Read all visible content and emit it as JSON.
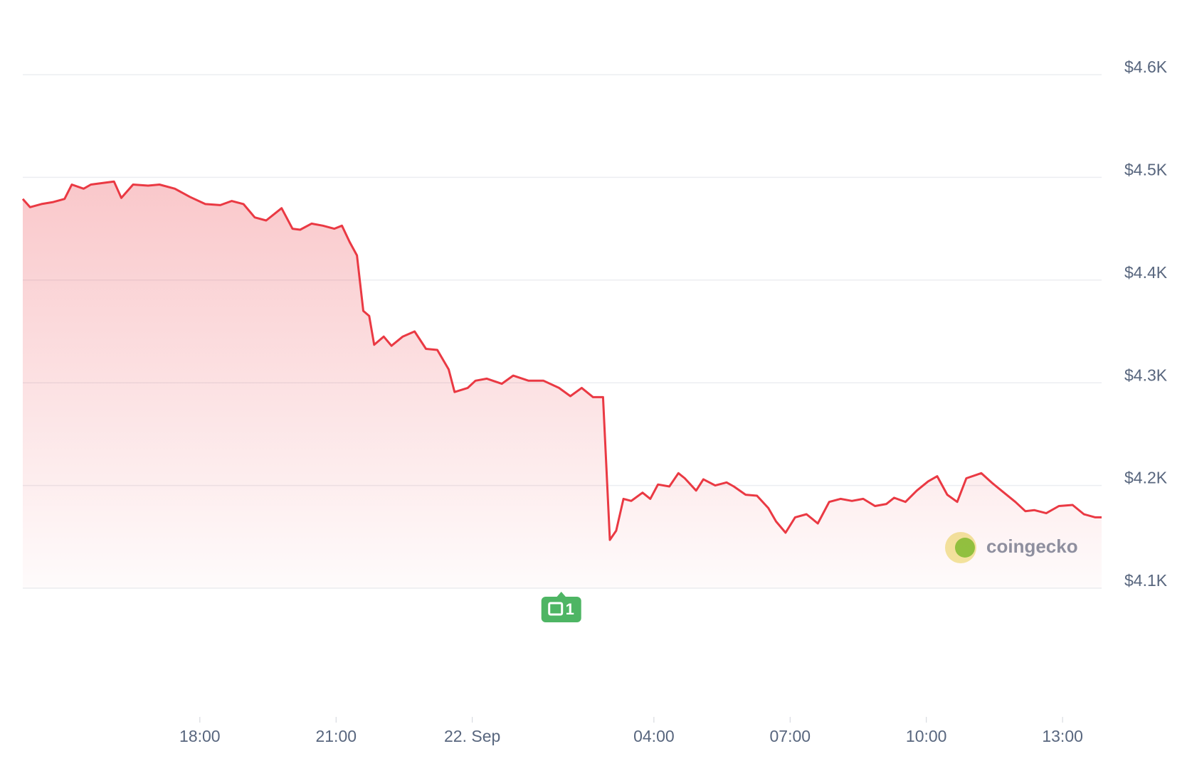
{
  "chart_data": {
    "type": "line",
    "x": [
      14.1,
      14.26,
      14.51,
      14.77,
      15.02,
      15.18,
      15.44,
      15.6,
      15.94,
      16.11,
      16.27,
      16.53,
      16.86,
      17.11,
      17.45,
      17.78,
      18.12,
      18.45,
      18.7,
      18.96,
      19.21,
      19.46,
      19.8,
      20.04,
      20.21,
      20.46,
      20.71,
      20.96,
      21.13,
      21.3,
      21.46,
      21.6,
      21.73,
      21.84,
      22.05,
      22.22,
      22.47,
      22.73,
      22.98,
      23.23,
      23.48,
      23.61,
      23.9,
      24.07,
      24.32,
      24.65,
      24.9,
      25.24,
      25.57,
      25.91,
      26.16,
      26.41,
      26.66,
      26.88,
      27.03,
      27.17,
      27.33,
      27.5,
      27.75,
      27.92,
      28.09,
      28.34,
      28.54,
      28.68,
      28.93,
      29.09,
      29.35,
      29.6,
      29.76,
      30.02,
      30.27,
      30.52,
      30.69,
      30.9,
      31.11,
      31.36,
      31.61,
      31.86,
      32.11,
      32.36,
      32.61,
      32.87,
      33.12,
      33.29,
      33.54,
      33.79,
      34.04,
      34.24,
      34.46,
      34.68,
      34.88,
      35.21,
      35.46,
      35.71,
      35.96,
      36.18,
      36.38,
      36.64,
      36.92,
      37.22,
      37.47,
      37.72,
      37.86
    ],
    "series": [
      {
        "color": "#ea3943",
        "values": [
          4479,
          4471,
          4474,
          4476,
          4479,
          4493,
          4489,
          4493,
          4495,
          4496,
          4480,
          4493,
          4492,
          4493,
          4489,
          4481,
          4474,
          4473,
          4477,
          4474,
          4461,
          4458,
          4470,
          4450,
          4449,
          4455,
          4453,
          4450,
          4453,
          4437,
          4424,
          4370,
          4365,
          4337,
          4345,
          4336,
          4345,
          4350,
          4333,
          4332,
          4313,
          4291,
          4295,
          4302,
          4304,
          4299,
          4307,
          4302,
          4302,
          4295,
          4287,
          4295,
          4286,
          4286,
          4147,
          4156,
          4187,
          4185,
          4193,
          4187,
          4201,
          4199,
          4212,
          4207,
          4195,
          4206,
          4200,
          4203,
          4199,
          4191,
          4190,
          4178,
          4165,
          4154,
          4169,
          4172,
          4163,
          4184,
          4187,
          4185,
          4187,
          4180,
          4182,
          4188,
          4184,
          4195,
          4204,
          4209,
          4191,
          4184,
          4207,
          4212,
          4202,
          4193,
          4184,
          4175,
          4176,
          4173,
          4180,
          4181,
          4172,
          4169,
          4169
        ]
      }
    ],
    "xlim": [
      14.1,
      37.86
    ],
    "xticks": [
      {
        "value": 18,
        "label": "18:00"
      },
      {
        "value": 21,
        "label": "21:00"
      },
      {
        "value": 24,
        "label": "22. Sep"
      },
      {
        "value": 28,
        "label": "04:00"
      },
      {
        "value": 31,
        "label": "07:00"
      },
      {
        "value": 34,
        "label": "10:00"
      },
      {
        "value": 37,
        "label": "13:00"
      }
    ],
    "ylim": [
      4100,
      4600
    ],
    "yticks": [
      {
        "value": 4100,
        "label": "$4.1K"
      },
      {
        "value": 4200,
        "label": "$4.2K"
      },
      {
        "value": 4300,
        "label": "$4.3K"
      },
      {
        "value": 4400,
        "label": "$4.4K"
      },
      {
        "value": 4500,
        "label": "$4.5K"
      },
      {
        "value": 4600,
        "label": "$4.6K"
      }
    ],
    "grid": true,
    "annotations": [
      {
        "x": 25.96,
        "text": "1"
      }
    ],
    "watermark": "coingecko"
  }
}
